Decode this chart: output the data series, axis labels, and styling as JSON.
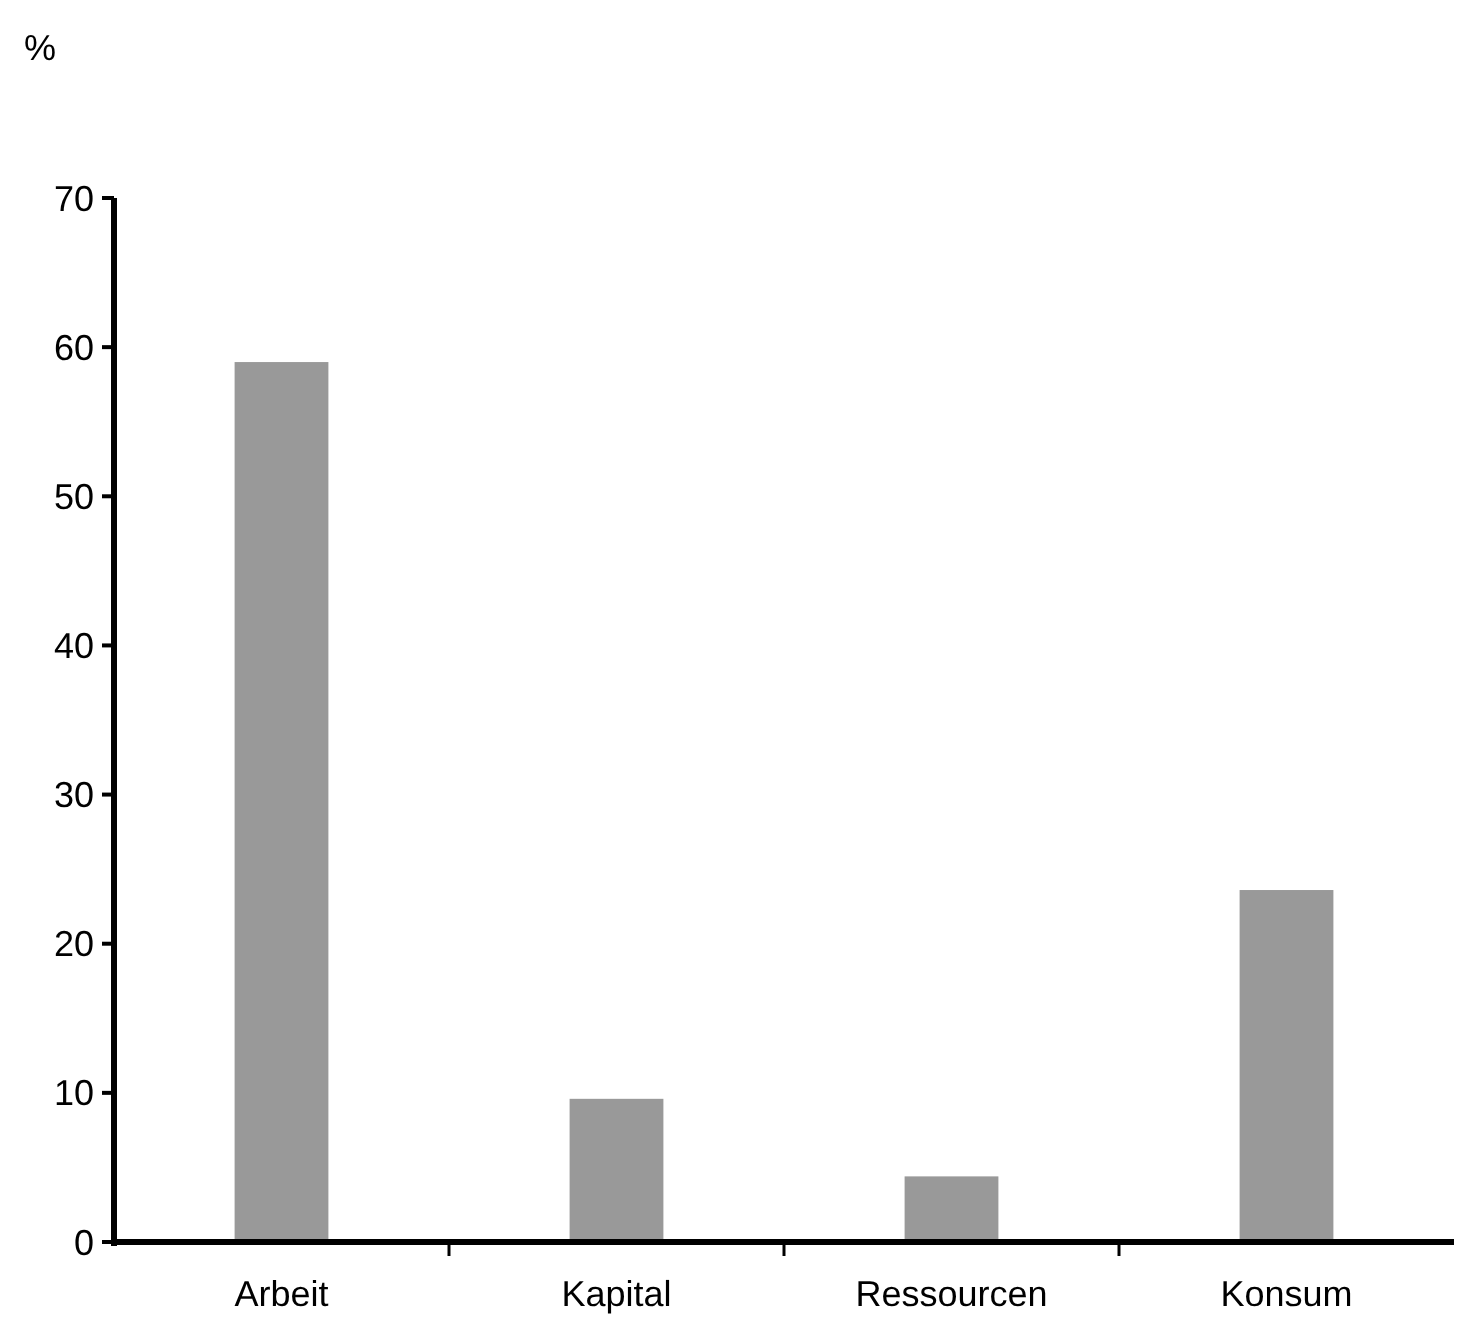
{
  "chart_data": {
    "type": "bar",
    "ylabel": "%",
    "categories": [
      "Arbeit",
      "Kapital",
      "Ressourcen",
      "Konsum"
    ],
    "values": [
      59,
      9.6,
      4.4,
      23.6
    ],
    "color": "#999999",
    "ylim": [
      0,
      70
    ],
    "yticks": [
      0,
      10,
      20,
      30,
      40,
      50,
      60,
      70
    ]
  }
}
